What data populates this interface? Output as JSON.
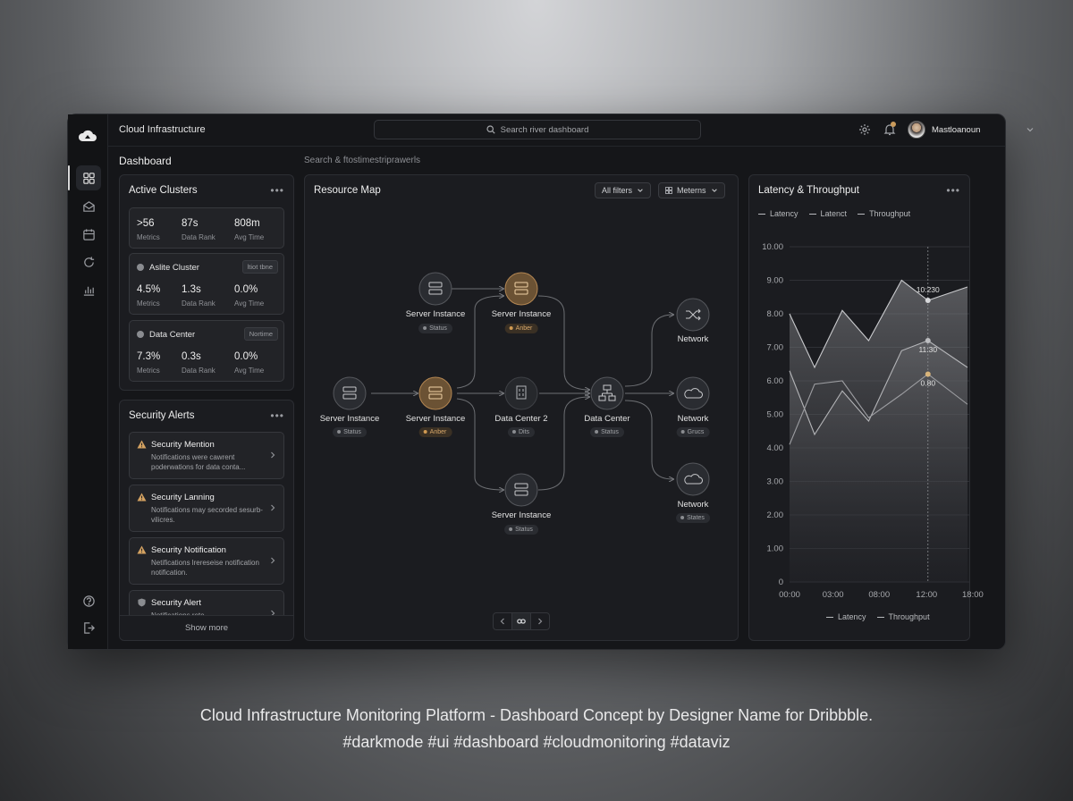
{
  "topbar": {
    "app_title": "Cloud Infrastructure",
    "search_placeholder": "Search river dashboard",
    "user_name": "Mastloanoun"
  },
  "page": {
    "title": "Dashboard",
    "sub_search": "Search & ftostimestriprawerls"
  },
  "clusters": {
    "title": "Active Clusters",
    "top_metrics": [
      {
        "value": ">56",
        "label": "Metrics"
      },
      {
        "value": "87s",
        "label": "Data Rank"
      },
      {
        "value": "808m",
        "label": "Avg Time"
      }
    ],
    "cards": [
      {
        "name": "Aslite Cluster",
        "tag": "ltiot tbne",
        "metrics": [
          {
            "value": "4.5%",
            "label": "Metrics"
          },
          {
            "value": "1.3s",
            "label": "Data Rank"
          },
          {
            "value": "0.0%",
            "label": "Avg Time"
          }
        ]
      },
      {
        "name": "Data Center",
        "tag": "Nortime",
        "metrics": [
          {
            "value": "7.3%",
            "label": "Metrics"
          },
          {
            "value": "0.3s",
            "label": "Data Rank"
          },
          {
            "value": "0.0%",
            "label": "Avg Time"
          }
        ]
      }
    ]
  },
  "alerts": {
    "title": "Security Alerts",
    "items": [
      {
        "title": "Security Mention",
        "body": "Notifications were cawrent poderwations for data conta..."
      },
      {
        "title": "Security Lanning",
        "body": "Notifications may secorded sesurb-vilicres."
      },
      {
        "title": "Security Notification",
        "body": "Netifications lrereseise notification notification."
      },
      {
        "title": "Security Alert",
        "body": "Notifications rete..."
      }
    ],
    "show_more": "Show more"
  },
  "resource_map": {
    "title": "Resource Map",
    "filter_all": "All filters",
    "filter_metrics": "Meterns",
    "nodes": [
      {
        "label": "Server Instance",
        "status": "Status",
        "amber": false
      },
      {
        "label": "Server Instance",
        "status": "Anber",
        "amber": true
      },
      {
        "label": "Server Instance",
        "status": "Status",
        "amber": false
      },
      {
        "label": "Server Instance",
        "status": "Anber",
        "amber": true
      },
      {
        "label": "Data Center 2",
        "status": "Dits",
        "amber": false
      },
      {
        "label": "Server Instance",
        "status": "Status",
        "amber": false
      },
      {
        "label": "Data Center",
        "status": "Status",
        "amber": false
      },
      {
        "label": "Network",
        "status": "",
        "amber": false
      },
      {
        "label": "Network",
        "status": "Grucs",
        "amber": false
      },
      {
        "label": "Network",
        "status": "States",
        "amber": false
      }
    ]
  },
  "latency": {
    "title": "Latency & Throughput",
    "legend_top": [
      "Latency",
      "Latenct",
      "Throughput"
    ],
    "legend_bottom": [
      "Latency",
      "Throughput"
    ]
  },
  "chart_data": {
    "type": "area",
    "title": "Latency & Throughput",
    "x": [
      "00:00",
      "03:00",
      "08:00",
      "12:00",
      "18:00"
    ],
    "yticks": [
      "10.00",
      "9.00",
      "8.00",
      "7.00",
      "6.00",
      "5.00",
      "4.00",
      "3.00",
      "2.00",
      "1.00",
      "0"
    ],
    "ylim": [
      0,
      10
    ],
    "series": [
      {
        "name": "Latency",
        "x": [
          0,
          1.9,
          4,
          6,
          8.5,
          10.5,
          13.5
        ],
        "values": [
          8.0,
          6.4,
          8.1,
          7.2,
          9.0,
          8.4,
          8.8
        ]
      },
      {
        "name": "Throughput",
        "x": [
          0,
          1.9,
          4,
          6,
          8.5,
          10.5,
          13.5
        ],
        "values": [
          6.3,
          4.4,
          5.7,
          4.8,
          6.9,
          7.2,
          6.4
        ]
      },
      {
        "name": "Latenct",
        "x": [
          0,
          1.9,
          4,
          6,
          8.5,
          10.5,
          13.5
        ],
        "values": [
          4.1,
          5.9,
          6.0,
          4.9,
          5.6,
          6.2,
          5.3
        ]
      }
    ],
    "annotations": [
      {
        "x": 10.5,
        "y": 8.4,
        "text": "10:230"
      },
      {
        "x": 10.5,
        "y": 7.2,
        "text": "11:30"
      },
      {
        "x": 10.5,
        "y": 6.2,
        "text": "0.80"
      }
    ],
    "crosshair_x": 10.5,
    "grid": true
  },
  "caption": {
    "line1": "Cloud Infrastructure Monitoring Platform - Dashboard Concept by Designer Name for Dribbble.",
    "line2": "#darkmode #ui #dashboard #cloudmonitoring #dataviz"
  },
  "icons": {
    "logo": "cloud-logo-icon",
    "rail": [
      "grid-icon",
      "inbox-icon",
      "calendar-icon",
      "refresh-icon",
      "bar-chart-icon",
      "help-icon",
      "logout-icon"
    ]
  },
  "colors": {
    "accent": "#c99a5b",
    "panel": "#1b1c20",
    "background": "#151619"
  }
}
